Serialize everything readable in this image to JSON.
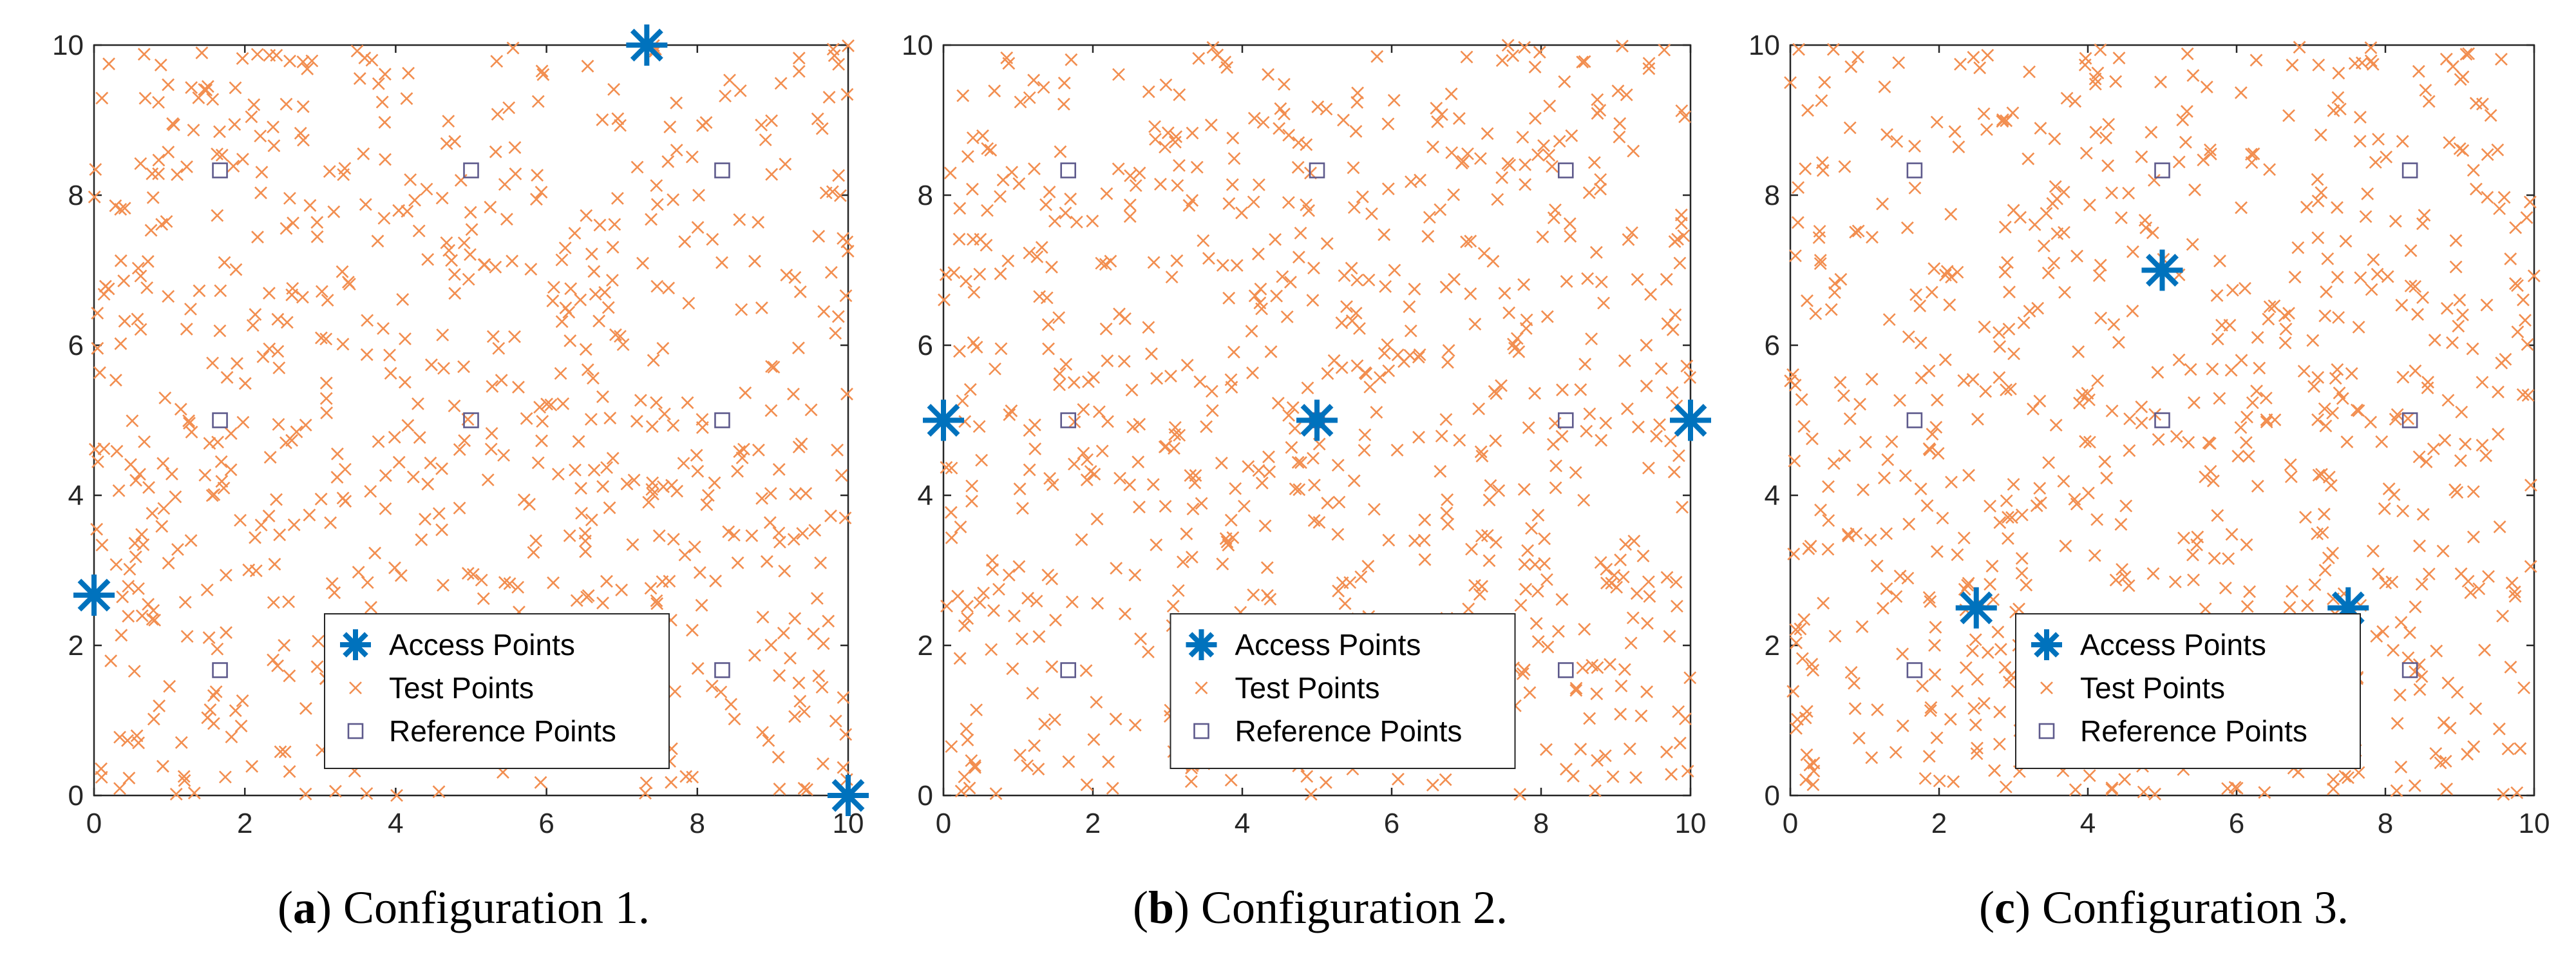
{
  "chart_data": [
    {
      "type": "scatter",
      "panel": "a",
      "caption_letter": "a",
      "caption_text": " Configuration 1.",
      "xlim": [
        0,
        10
      ],
      "ylim": [
        0,
        10
      ],
      "xticks": [
        "0",
        "2",
        "4",
        "6",
        "8",
        "10"
      ],
      "yticks": [
        "0",
        "2",
        "4",
        "6",
        "8",
        "10"
      ],
      "grid": false,
      "legend_position": "bottom-center",
      "legend": [
        "Access Points",
        "Test Points",
        "Reference Points"
      ],
      "access_points": [
        [
          7.33,
          10
        ],
        [
          0,
          2.67
        ],
        [
          10,
          0
        ]
      ],
      "reference_points": [
        [
          1.67,
          8.33
        ],
        [
          5,
          8.33
        ],
        [
          8.33,
          8.33
        ],
        [
          1.67,
          5
        ],
        [
          5,
          5
        ],
        [
          8.33,
          5
        ],
        [
          1.67,
          1.67
        ],
        [
          8.33,
          1.67
        ]
      ],
      "test_points_count": 700,
      "test_points_distribution": "uniform random over [0,10] x [0,10]"
    },
    {
      "type": "scatter",
      "panel": "b",
      "caption_letter": "b",
      "caption_text": " Configuration 2.",
      "xlim": [
        0,
        10
      ],
      "ylim": [
        0,
        10
      ],
      "xticks": [
        "0",
        "2",
        "4",
        "6",
        "8",
        "10"
      ],
      "yticks": [
        "0",
        "2",
        "4",
        "6",
        "8",
        "10"
      ],
      "grid": false,
      "legend_position": "bottom-center",
      "legend": [
        "Access Points",
        "Test Points",
        "Reference Points"
      ],
      "access_points": [
        [
          0,
          5
        ],
        [
          5,
          5
        ],
        [
          10,
          5
        ]
      ],
      "reference_points": [
        [
          1.67,
          8.33
        ],
        [
          5,
          8.33
        ],
        [
          8.33,
          8.33
        ],
        [
          1.67,
          5
        ],
        [
          5,
          5
        ],
        [
          8.33,
          5
        ],
        [
          1.67,
          1.67
        ],
        [
          8.33,
          1.67
        ]
      ],
      "test_points_count": 700,
      "test_points_distribution": "uniform random over [0,10] x [0,10]"
    },
    {
      "type": "scatter",
      "panel": "c",
      "caption_letter": "c",
      "caption_text": " Configuration 3.",
      "xlim": [
        0,
        10
      ],
      "ylim": [
        0,
        10
      ],
      "xticks": [
        "0",
        "2",
        "4",
        "6",
        "8",
        "10"
      ],
      "yticks": [
        "0",
        "2",
        "4",
        "6",
        "8",
        "10"
      ],
      "grid": false,
      "legend_position": "bottom-center",
      "legend": [
        "Access Points",
        "Test Points",
        "Reference Points"
      ],
      "access_points": [
        [
          5,
          7
        ],
        [
          2.5,
          2.5
        ],
        [
          7.5,
          2.5
        ]
      ],
      "reference_points": [
        [
          1.67,
          8.33
        ],
        [
          5,
          8.33
        ],
        [
          8.33,
          8.33
        ],
        [
          1.67,
          5
        ],
        [
          5,
          5
        ],
        [
          8.33,
          5
        ],
        [
          1.67,
          1.67
        ],
        [
          8.33,
          1.67
        ]
      ],
      "test_points_count": 700,
      "test_points_distribution": "uniform random over [0,10] x [0,10]"
    }
  ],
  "colors": {
    "access_point": "#0072BD",
    "test_point": "#F28E50",
    "reference_point": "#5E5A8C",
    "axis": "#262626"
  }
}
